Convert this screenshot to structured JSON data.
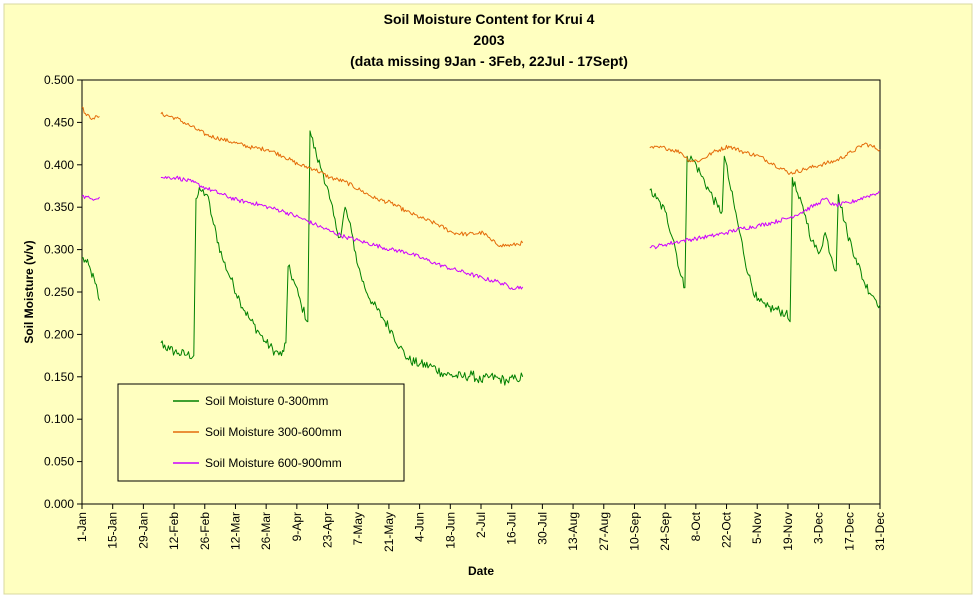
{
  "chart_data": {
    "type": "line",
    "title": [
      "Soil Moisture Content for Krui 4",
      "2003",
      "(data missing 9Jan - 3Feb, 22Jul - 17Sept)"
    ],
    "xlabel": "Date",
    "ylabel": "Soil Moisture (v/v)",
    "xlim": [
      "2003-01-01",
      "2003-12-31"
    ],
    "ylim": [
      0,
      0.5
    ],
    "yticks": [
      0,
      0.05,
      0.1,
      0.15,
      0.2,
      0.25,
      0.3,
      0.35,
      0.4,
      0.45,
      0.5
    ],
    "ytick_labels": [
      "0.000",
      "0.050",
      "0.100",
      "0.150",
      "0.200",
      "0.250",
      "0.300",
      "0.350",
      "0.400",
      "0.450",
      "0.500"
    ],
    "xticks": [
      "2003-01-01",
      "2003-01-15",
      "2003-01-29",
      "2003-02-12",
      "2003-02-26",
      "2003-03-12",
      "2003-03-26",
      "2003-04-09",
      "2003-04-23",
      "2003-05-07",
      "2003-05-21",
      "2003-06-04",
      "2003-06-18",
      "2003-07-02",
      "2003-07-16",
      "2003-07-30",
      "2003-08-13",
      "2003-08-27",
      "2003-09-10",
      "2003-09-24",
      "2003-10-08",
      "2003-10-22",
      "2003-11-05",
      "2003-11-19",
      "2003-12-03",
      "2003-12-17",
      "2003-12-31"
    ],
    "xtick_labels": [
      "1-Jan",
      "15-Jan",
      "29-Jan",
      "12-Feb",
      "26-Feb",
      "12-Mar",
      "26-Mar",
      "9-Apr",
      "23-Apr",
      "7-May",
      "21-May",
      "4-Jun",
      "18-Jun",
      "2-Jul",
      "16-Jul",
      "30-Jul",
      "13-Aug",
      "27-Aug",
      "10-Sep",
      "24-Sep",
      "8-Oct",
      "22-Oct",
      "5-Nov",
      "19-Nov",
      "3-Dec",
      "17-Dec",
      "31-Dec"
    ],
    "grid": false,
    "legend_position": "bottom-left",
    "colors": {
      "chart_background": "#FFFFC0",
      "plot_background": "#FFFFC0",
      "border": "#000000"
    },
    "series": [
      {
        "name": "Soil Moisture 0-300mm",
        "color": "#008000",
        "segments": [
          [
            [
              "2003-01-01",
              0.29
            ],
            [
              "2003-01-03",
              0.285
            ],
            [
              "2003-01-05",
              0.275
            ],
            [
              "2003-01-07",
              0.26
            ],
            [
              "2003-01-09",
              0.24
            ]
          ],
          [
            [
              "2003-02-06",
              0.19
            ],
            [
              "2003-02-10",
              0.182
            ],
            [
              "2003-02-14",
              0.178
            ],
            [
              "2003-02-18",
              0.176
            ],
            [
              "2003-02-21",
              0.175
            ],
            [
              "2003-02-22",
              0.36
            ],
            [
              "2003-02-24",
              0.37
            ],
            [
              "2003-02-27",
              0.365
            ],
            [
              "2003-03-02",
              0.33
            ],
            [
              "2003-03-06",
              0.29
            ],
            [
              "2003-03-10",
              0.265
            ],
            [
              "2003-03-14",
              0.24
            ],
            [
              "2003-03-18",
              0.22
            ],
            [
              "2003-03-22",
              0.205
            ],
            [
              "2003-03-26",
              0.19
            ],
            [
              "2003-03-30",
              0.18
            ],
            [
              "2003-04-02",
              0.175
            ],
            [
              "2003-04-04",
              0.19
            ],
            [
              "2003-04-05",
              0.28
            ],
            [
              "2003-04-08",
              0.26
            ],
            [
              "2003-04-11",
              0.235
            ],
            [
              "2003-04-14",
              0.215
            ],
            [
              "2003-04-15",
              0.44
            ],
            [
              "2003-04-18",
              0.41
            ],
            [
              "2003-04-21",
              0.39
            ],
            [
              "2003-04-24",
              0.36
            ],
            [
              "2003-04-27",
              0.325
            ],
            [
              "2003-04-29",
              0.315
            ],
            [
              "2003-05-01",
              0.35
            ],
            [
              "2003-05-04",
              0.32
            ],
            [
              "2003-05-07",
              0.28
            ],
            [
              "2003-05-10",
              0.255
            ],
            [
              "2003-05-14",
              0.235
            ],
            [
              "2003-05-18",
              0.22
            ],
            [
              "2003-05-22",
              0.205
            ],
            [
              "2003-05-26",
              0.185
            ],
            [
              "2003-05-30",
              0.17
            ],
            [
              "2003-06-04",
              0.165
            ],
            [
              "2003-06-10",
              0.162
            ],
            [
              "2003-06-14",
              0.155
            ],
            [
              "2003-06-18",
              0.152
            ],
            [
              "2003-06-24",
              0.15
            ],
            [
              "2003-06-28",
              0.152
            ],
            [
              "2003-07-02",
              0.145
            ],
            [
              "2003-07-06",
              0.15
            ],
            [
              "2003-07-10",
              0.148
            ],
            [
              "2003-07-14",
              0.145
            ],
            [
              "2003-07-18",
              0.148
            ],
            [
              "2003-07-21",
              0.15
            ]
          ],
          [
            [
              "2003-09-17",
              0.37
            ],
            [
              "2003-09-20",
              0.36
            ],
            [
              "2003-09-24",
              0.345
            ],
            [
              "2003-09-28",
              0.31
            ],
            [
              "2003-10-01",
              0.27
            ],
            [
              "2003-10-03",
              0.255
            ],
            [
              "2003-10-04",
              0.41
            ],
            [
              "2003-10-07",
              0.405
            ],
            [
              "2003-10-10",
              0.39
            ],
            [
              "2003-10-14",
              0.37
            ],
            [
              "2003-10-18",
              0.35
            ],
            [
              "2003-10-20",
              0.345
            ],
            [
              "2003-10-21",
              0.41
            ],
            [
              "2003-10-24",
              0.37
            ],
            [
              "2003-10-28",
              0.32
            ],
            [
              "2003-11-01",
              0.27
            ],
            [
              "2003-11-05",
              0.24
            ],
            [
              "2003-11-09",
              0.232
            ],
            [
              "2003-11-13",
              0.23
            ],
            [
              "2003-11-18",
              0.225
            ],
            [
              "2003-11-20",
              0.215
            ],
            [
              "2003-11-21",
              0.385
            ],
            [
              "2003-11-24",
              0.36
            ],
            [
              "2003-11-27",
              0.34
            ],
            [
              "2003-11-30",
              0.31
            ],
            [
              "2003-12-03",
              0.295
            ],
            [
              "2003-12-06",
              0.32
            ],
            [
              "2003-12-09",
              0.29
            ],
            [
              "2003-12-11",
              0.275
            ],
            [
              "2003-12-12",
              0.365
            ],
            [
              "2003-12-16",
              0.32
            ],
            [
              "2003-12-20",
              0.29
            ],
            [
              "2003-12-24",
              0.26
            ],
            [
              "2003-12-28",
              0.245
            ],
            [
              "2003-12-31",
              0.235
            ]
          ]
        ]
      },
      {
        "name": "Soil Moisture 300-600mm",
        "color": "#E46C0A",
        "segments": [
          [
            [
              "2003-01-01",
              0.468
            ],
            [
              "2003-01-03",
              0.458
            ],
            [
              "2003-01-06",
              0.455
            ],
            [
              "2003-01-09",
              0.457
            ]
          ],
          [
            [
              "2003-02-06",
              0.46
            ],
            [
              "2003-02-13",
              0.455
            ],
            [
              "2003-02-20",
              0.445
            ],
            [
              "2003-02-27",
              0.435
            ],
            [
              "2003-03-06",
              0.43
            ],
            [
              "2003-03-13",
              0.425
            ],
            [
              "2003-03-20",
              0.42
            ],
            [
              "2003-03-27",
              0.418
            ],
            [
              "2003-04-03",
              0.41
            ],
            [
              "2003-04-10",
              0.4
            ],
            [
              "2003-04-17",
              0.395
            ],
            [
              "2003-04-24",
              0.385
            ],
            [
              "2003-05-01",
              0.38
            ],
            [
              "2003-05-08",
              0.37
            ],
            [
              "2003-05-15",
              0.36
            ],
            [
              "2003-05-22",
              0.355
            ],
            [
              "2003-05-29",
              0.345
            ],
            [
              "2003-06-05",
              0.337
            ],
            [
              "2003-06-12",
              0.33
            ],
            [
              "2003-06-19",
              0.32
            ],
            [
              "2003-06-26",
              0.318
            ],
            [
              "2003-07-03",
              0.32
            ],
            [
              "2003-07-07",
              0.31
            ],
            [
              "2003-07-11",
              0.305
            ],
            [
              "2003-07-16",
              0.305
            ],
            [
              "2003-07-21",
              0.308
            ]
          ],
          [
            [
              "2003-09-17",
              0.42
            ],
            [
              "2003-09-24",
              0.42
            ],
            [
              "2003-10-01",
              0.415
            ],
            [
              "2003-10-05",
              0.405
            ],
            [
              "2003-10-10",
              0.405
            ],
            [
              "2003-10-16",
              0.415
            ],
            [
              "2003-10-23",
              0.422
            ],
            [
              "2003-10-30",
              0.415
            ],
            [
              "2003-11-06",
              0.41
            ],
            [
              "2003-11-13",
              0.4
            ],
            [
              "2003-11-20",
              0.39
            ],
            [
              "2003-11-27",
              0.395
            ],
            [
              "2003-12-04",
              0.4
            ],
            [
              "2003-12-11",
              0.405
            ],
            [
              "2003-12-18",
              0.415
            ],
            [
              "2003-12-24",
              0.425
            ],
            [
              "2003-12-31",
              0.418
            ]
          ]
        ]
      },
      {
        "name": "Soil Moisture 600-900mm",
        "color": "#CC00FF",
        "segments": [
          [
            [
              "2003-01-01",
              0.363
            ],
            [
              "2003-01-05",
              0.36
            ],
            [
              "2003-01-09",
              0.362
            ]
          ],
          [
            [
              "2003-02-06",
              0.385
            ],
            [
              "2003-02-13",
              0.385
            ],
            [
              "2003-02-20",
              0.38
            ],
            [
              "2003-02-27",
              0.372
            ],
            [
              "2003-03-06",
              0.365
            ],
            [
              "2003-03-13",
              0.358
            ],
            [
              "2003-03-20",
              0.355
            ],
            [
              "2003-03-27",
              0.35
            ],
            [
              "2003-04-03",
              0.345
            ],
            [
              "2003-04-10",
              0.338
            ],
            [
              "2003-04-17",
              0.33
            ],
            [
              "2003-04-24",
              0.322
            ],
            [
              "2003-05-01",
              0.315
            ],
            [
              "2003-05-08",
              0.31
            ],
            [
              "2003-05-15",
              0.305
            ],
            [
              "2003-05-22",
              0.3
            ],
            [
              "2003-05-29",
              0.297
            ],
            [
              "2003-06-05",
              0.29
            ],
            [
              "2003-06-12",
              0.283
            ],
            [
              "2003-06-19",
              0.277
            ],
            [
              "2003-06-26",
              0.272
            ],
            [
              "2003-07-03",
              0.266
            ],
            [
              "2003-07-10",
              0.262
            ],
            [
              "2003-07-16",
              0.255
            ],
            [
              "2003-07-21",
              0.256
            ]
          ],
          [
            [
              "2003-09-17",
              0.302
            ],
            [
              "2003-09-24",
              0.306
            ],
            [
              "2003-10-01",
              0.31
            ],
            [
              "2003-10-08",
              0.313
            ],
            [
              "2003-10-15",
              0.316
            ],
            [
              "2003-10-22",
              0.32
            ],
            [
              "2003-10-29",
              0.325
            ],
            [
              "2003-11-05",
              0.328
            ],
            [
              "2003-11-12",
              0.332
            ],
            [
              "2003-11-19",
              0.337
            ],
            [
              "2003-11-26",
              0.345
            ],
            [
              "2003-12-03",
              0.355
            ],
            [
              "2003-12-06",
              0.36
            ],
            [
              "2003-12-10",
              0.352
            ],
            [
              "2003-12-17",
              0.355
            ],
            [
              "2003-12-24",
              0.362
            ],
            [
              "2003-12-31",
              0.368
            ]
          ]
        ]
      }
    ]
  }
}
